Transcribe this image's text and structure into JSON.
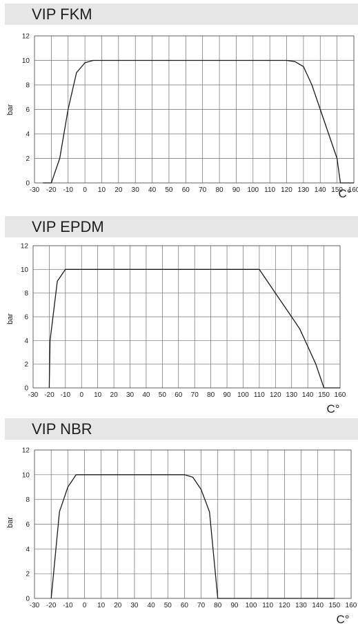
{
  "chart_data": [
    {
      "type": "line",
      "title": "VIP FKM",
      "xlabel": "C°",
      "ylabel": "bar",
      "xlim": [
        -30,
        160
      ],
      "ylim": [
        0,
        12
      ],
      "xticks": [
        -30,
        -20,
        -10,
        0,
        10,
        20,
        30,
        40,
        50,
        60,
        70,
        80,
        90,
        100,
        110,
        120,
        130,
        140,
        150,
        160
      ],
      "yticks": [
        0,
        2,
        4,
        6,
        8,
        10,
        12
      ],
      "grid": true,
      "series": [
        {
          "x": [
            -25,
            -20,
            -15,
            -10,
            -5,
            0,
            5,
            120,
            125,
            130,
            135,
            140,
            145,
            150,
            152,
            160
          ],
          "y": [
            0,
            0,
            2,
            6,
            9,
            9.8,
            10,
            10,
            9.9,
            9.5,
            8,
            6,
            4,
            2,
            0,
            0
          ]
        }
      ]
    },
    {
      "type": "line",
      "title": "VIP EPDM",
      "xlabel": "C°",
      "ylabel": "bar",
      "xlim": [
        -30,
        160
      ],
      "ylim": [
        0,
        12
      ],
      "xticks": [
        -30,
        -20,
        -10,
        0,
        10,
        20,
        30,
        40,
        50,
        60,
        70,
        80,
        90,
        100,
        110,
        120,
        130,
        140,
        150,
        160
      ],
      "yticks": [
        0,
        2,
        4,
        6,
        8,
        10,
        12
      ],
      "grid": true,
      "series": [
        {
          "x": [
            -20,
            -19.5,
            -15,
            -10,
            110,
            120,
            130,
            135,
            140,
            145,
            150,
            160
          ],
          "y": [
            0,
            4,
            9,
            10,
            10,
            8,
            6,
            5,
            3.5,
            2,
            0,
            0
          ]
        }
      ]
    },
    {
      "type": "line",
      "title": "VIP NBR",
      "xlabel": "C°",
      "ylabel": "bar",
      "xlim": [
        -30,
        160
      ],
      "ylim": [
        0,
        12
      ],
      "xticks": [
        -30,
        -20,
        -10,
        0,
        10,
        20,
        30,
        40,
        50,
        60,
        70,
        80,
        90,
        100,
        110,
        120,
        130,
        140,
        150,
        160
      ],
      "yticks": [
        0,
        2,
        4,
        6,
        8,
        10,
        12
      ],
      "grid": true,
      "series": [
        {
          "x": [
            -20,
            -15,
            -10,
            -5,
            60,
            65,
            70,
            75,
            80,
            150
          ],
          "y": [
            0,
            7,
            9,
            10,
            10,
            9.8,
            8.8,
            7,
            0,
            0
          ]
        }
      ]
    }
  ]
}
